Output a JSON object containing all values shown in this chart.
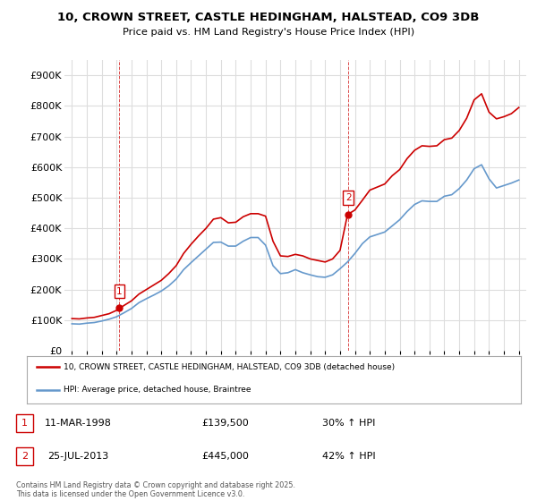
{
  "title": "10, CROWN STREET, CASTLE HEDINGHAM, HALSTEAD, CO9 3DB",
  "subtitle": "Price paid vs. HM Land Registry's House Price Index (HPI)",
  "ylim": [
    0,
    950000
  ],
  "yticks": [
    0,
    100000,
    200000,
    300000,
    400000,
    500000,
    600000,
    700000,
    800000,
    900000
  ],
  "ytick_labels": [
    "£0",
    "£100K",
    "£200K",
    "£300K",
    "£400K",
    "£500K",
    "£600K",
    "£700K",
    "£800K",
    "£900K"
  ],
  "xlim_start": 1994.5,
  "xlim_end": 2025.5,
  "sale1_x": 1998.19,
  "sale1_y": 139500,
  "sale1_label": "1",
  "sale1_date": "11-MAR-1998",
  "sale1_price": "£139,500",
  "sale1_hpi": "30% ↑ HPI",
  "sale2_x": 2013.56,
  "sale2_y": 445000,
  "sale2_label": "2",
  "sale2_date": "25-JUL-2013",
  "sale2_price": "£445,000",
  "sale2_hpi": "42% ↑ HPI",
  "red_color": "#cc0000",
  "blue_color": "#6699cc",
  "legend_label_red": "10, CROWN STREET, CASTLE HEDINGHAM, HALSTEAD, CO9 3DB (detached house)",
  "legend_label_blue": "HPI: Average price, detached house, Braintree",
  "copyright_text": "Contains HM Land Registry data © Crown copyright and database right 2025.\nThis data is licensed under the Open Government Licence v3.0.",
  "background_color": "#ffffff",
  "grid_color": "#dddddd",
  "hpi_red_data_x": [
    1995,
    1995.5,
    1996,
    1996.5,
    1997,
    1997.5,
    1998,
    1998.5,
    1999,
    1999.5,
    2000,
    2000.5,
    2001,
    2001.5,
    2002,
    2002.5,
    2003,
    2003.5,
    2004,
    2004.5,
    2005,
    2005.5,
    2006,
    2006.5,
    2007,
    2007.5,
    2008,
    2008.5,
    2009,
    2009.5,
    2010,
    2010.5,
    2011,
    2011.5,
    2012,
    2012.5,
    2013,
    2013.5,
    2014,
    2014.5,
    2015,
    2015.5,
    2016,
    2016.5,
    2017,
    2017.5,
    2018,
    2018.5,
    2019,
    2019.5,
    2020,
    2020.5,
    2021,
    2021.5,
    2022,
    2022.5,
    2023,
    2023.5,
    2024,
    2024.5,
    2025
  ],
  "hpi_red_data_y": [
    105000,
    104000,
    107000,
    109000,
    115000,
    121000,
    132000,
    148000,
    163000,
    185000,
    200000,
    215000,
    230000,
    252000,
    278000,
    318000,
    348000,
    375000,
    400000,
    430000,
    435000,
    418000,
    420000,
    438000,
    448000,
    448000,
    440000,
    358000,
    310000,
    308000,
    315000,
    310000,
    300000,
    295000,
    290000,
    300000,
    328000,
    445000,
    460000,
    492000,
    525000,
    535000,
    545000,
    572000,
    592000,
    628000,
    655000,
    670000,
    668000,
    670000,
    690000,
    695000,
    720000,
    760000,
    820000,
    840000,
    780000,
    758000,
    765000,
    775000,
    795000
  ],
  "hpi_blue_data_x": [
    1995,
    1995.5,
    1996,
    1996.5,
    1997,
    1997.5,
    1998,
    1998.5,
    1999,
    1999.5,
    2000,
    2000.5,
    2001,
    2001.5,
    2002,
    2002.5,
    2003,
    2003.5,
    2004,
    2004.5,
    2005,
    2005.5,
    2006,
    2006.5,
    2007,
    2007.5,
    2008,
    2008.5,
    2009,
    2009.5,
    2010,
    2010.5,
    2011,
    2011.5,
    2012,
    2012.5,
    2013,
    2013.5,
    2014,
    2014.5,
    2015,
    2015.5,
    2016,
    2016.5,
    2017,
    2017.5,
    2018,
    2018.5,
    2019,
    2019.5,
    2020,
    2020.5,
    2021,
    2021.5,
    2022,
    2022.5,
    2023,
    2023.5,
    2024,
    2024.5,
    2025
  ],
  "hpi_blue_data_y": [
    88000,
    87000,
    90000,
    92000,
    97000,
    103000,
    111000,
    124000,
    138000,
    157000,
    170000,
    182000,
    195000,
    212000,
    234000,
    265000,
    288000,
    310000,
    332000,
    354000,
    355000,
    342000,
    342000,
    358000,
    370000,
    370000,
    345000,
    278000,
    252000,
    255000,
    265000,
    255000,
    248000,
    242000,
    240000,
    248000,
    268000,
    290000,
    318000,
    350000,
    372000,
    380000,
    388000,
    408000,
    428000,
    455000,
    478000,
    490000,
    488000,
    488000,
    505000,
    510000,
    530000,
    558000,
    595000,
    608000,
    562000,
    532000,
    540000,
    548000,
    558000
  ]
}
